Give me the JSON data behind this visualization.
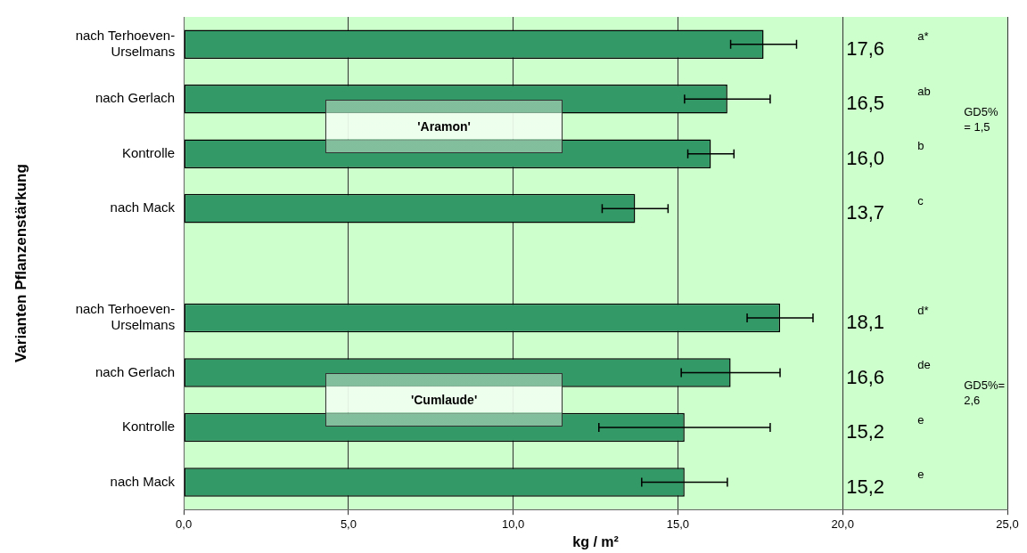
{
  "chart_data": {
    "type": "bar",
    "orientation": "horizontal",
    "xlabel": "kg / m²",
    "ylabel": "Varianten Pflanzenstärkung",
    "categories": [
      "nach Terhoeven-Urselmans",
      "nach Gerlach",
      "Kontrolle",
      "nach Mack",
      null,
      "nach Terhoeven-Urselmans",
      "nach Gerlach",
      "Kontrolle",
      "nach Mack"
    ],
    "values": [
      17.6,
      16.5,
      16.0,
      13.7,
      null,
      18.1,
      16.6,
      15.2,
      15.2
    ],
    "errors": [
      1.0,
      1.3,
      0.7,
      1.0,
      null,
      1.0,
      1.5,
      2.6,
      1.3
    ],
    "value_labels": [
      "17,6",
      "16,5",
      "16,0",
      "13,7",
      null,
      "18,1",
      "16,6",
      "15,2",
      "15,2"
    ],
    "color": "#339966",
    "xlim": [
      0,
      25
    ],
    "xticks": [
      {
        "value": 0,
        "label": "0,0"
      },
      {
        "value": 5,
        "label": "5,0"
      },
      {
        "value": 10,
        "label": "10,0"
      },
      {
        "value": 15,
        "label": "15,0"
      },
      {
        "value": 20,
        "label": "20,0"
      },
      {
        "value": 25,
        "label": "25,0"
      }
    ],
    "grid": "x",
    "legend": false,
    "annotations": [
      "a*",
      "ab",
      "b",
      "c",
      "d*",
      "de",
      "e",
      "e",
      "GD5% = 1,5",
      "GD5%= 2,6",
      "'Aramon'",
      "'Cumlaude'"
    ]
  }
}
